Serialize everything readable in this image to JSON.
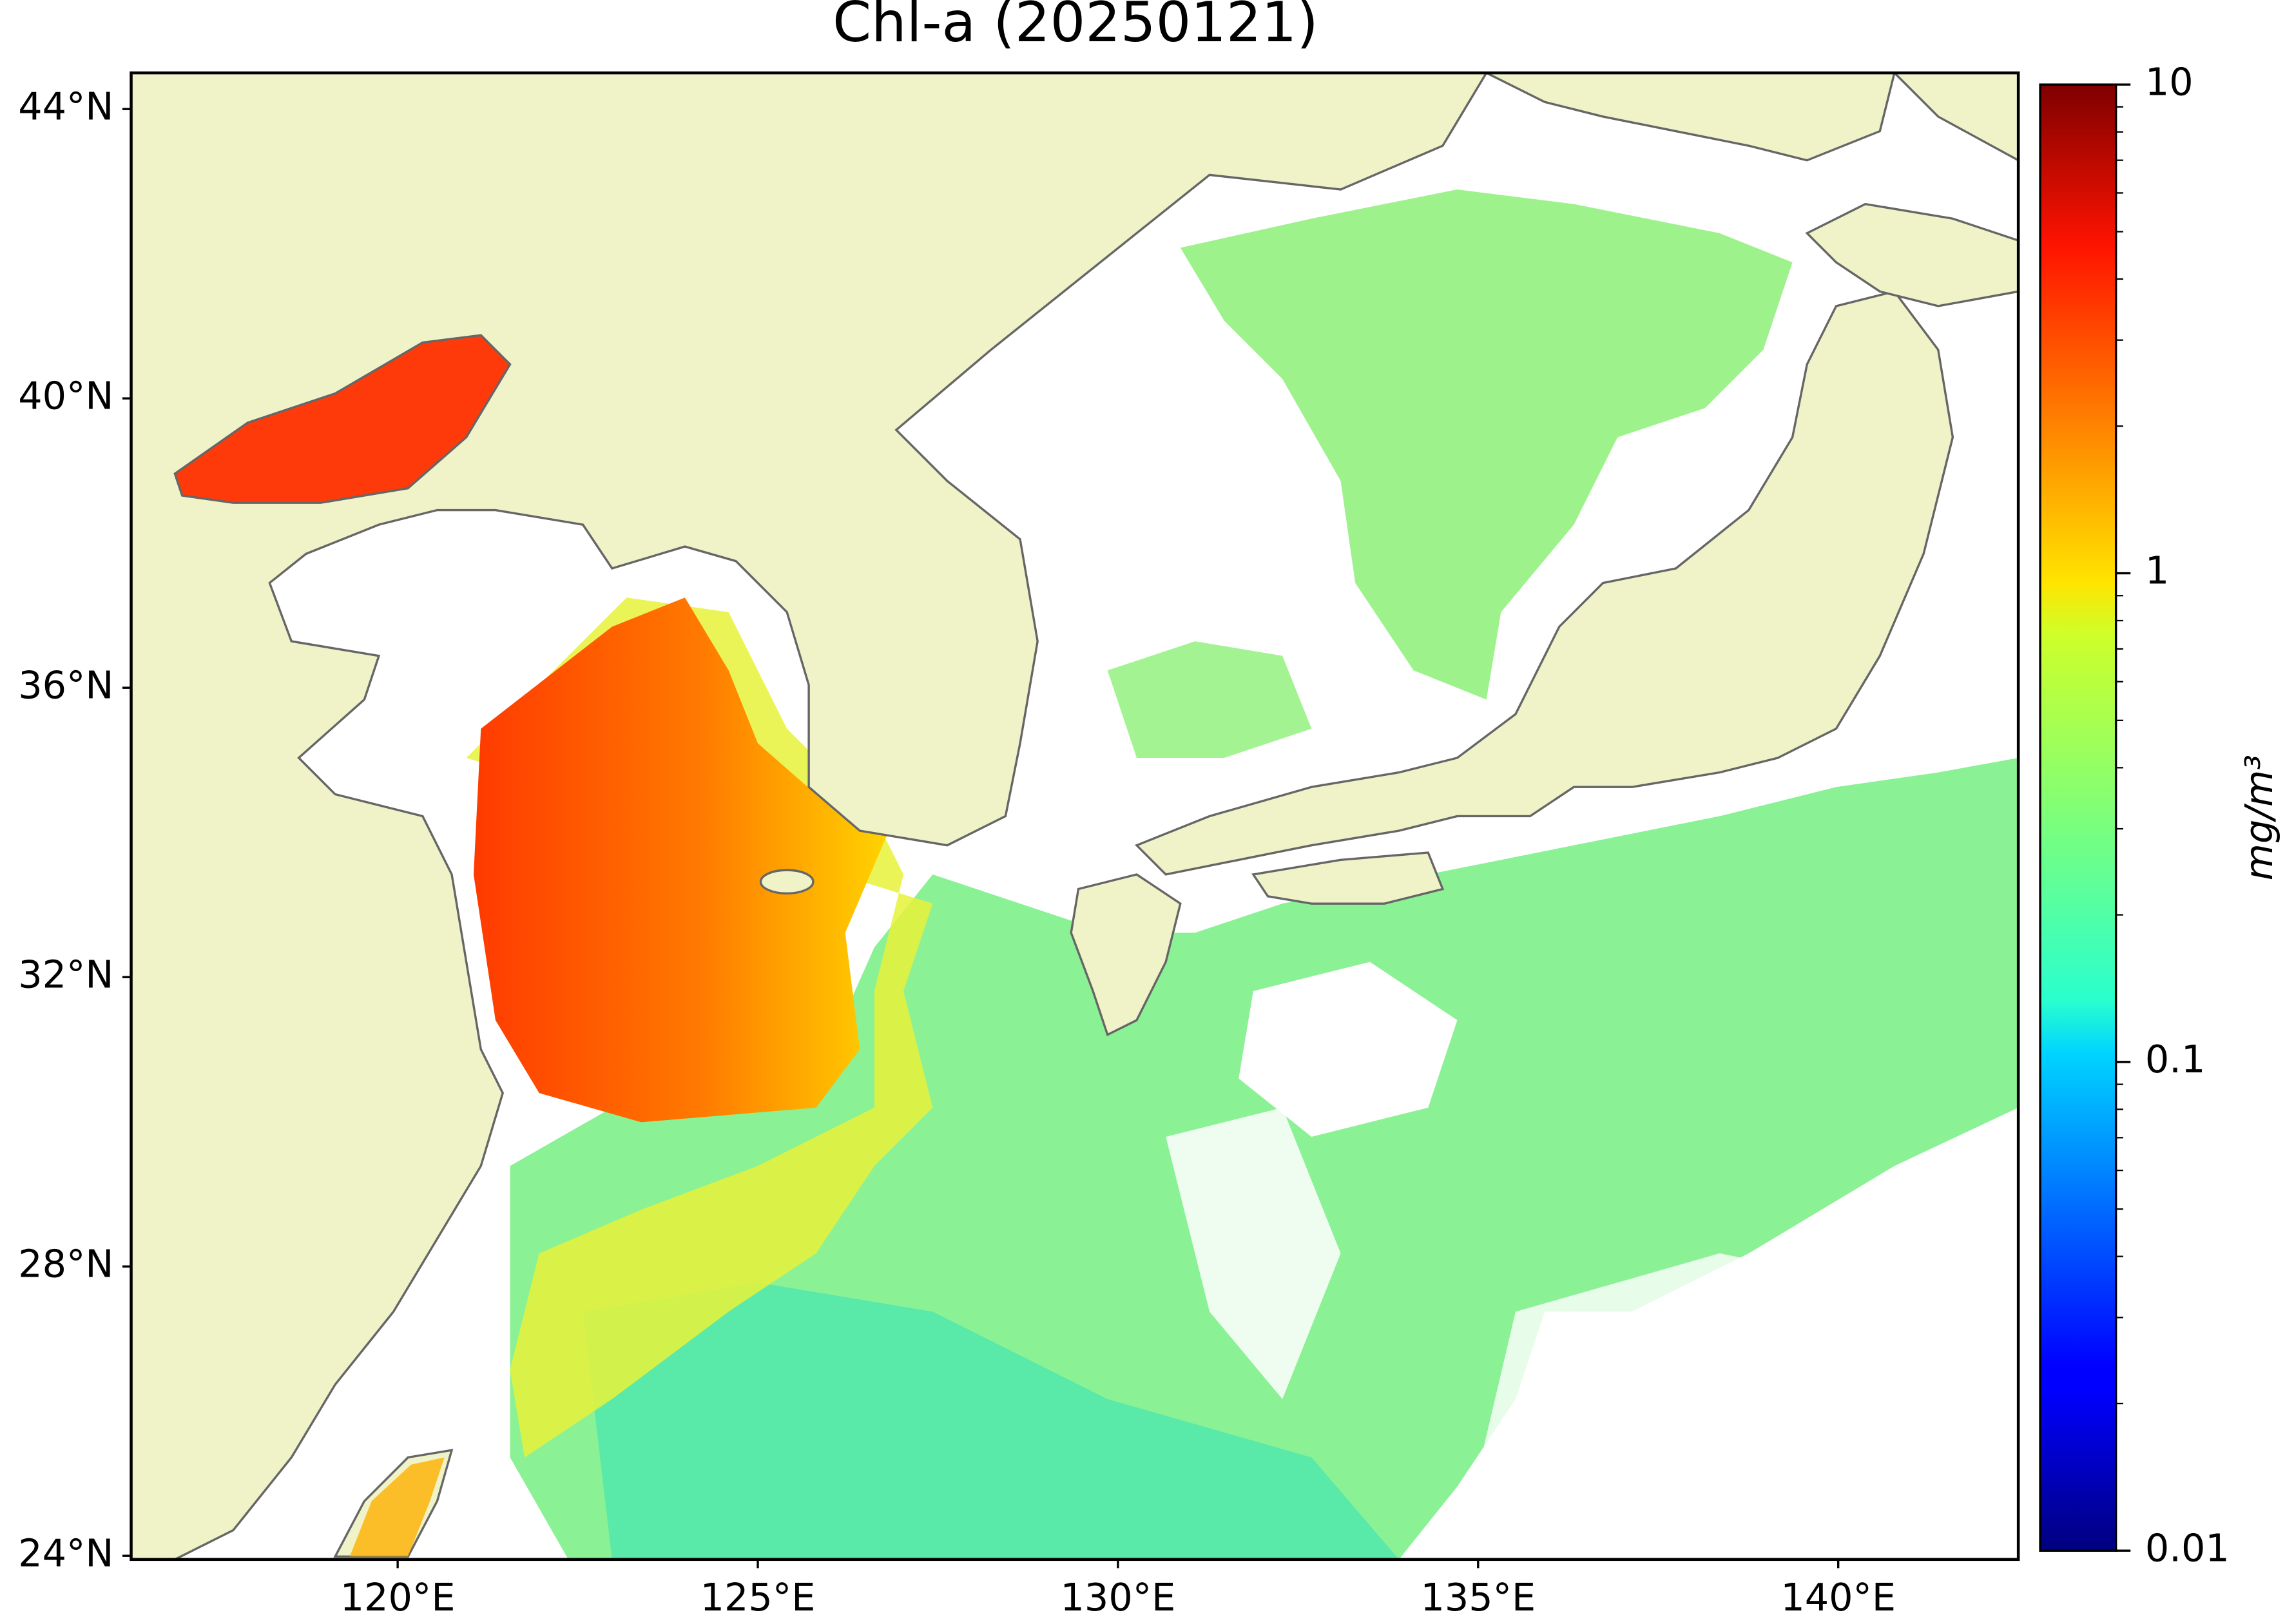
{
  "chart_data": {
    "type": "map",
    "title": "Chl-a (20250121)",
    "xlim": [
      116.3,
      142.5
    ],
    "ylim": [
      23.95,
      44.5
    ],
    "xticks": [
      {
        "value": 120,
        "label": "120°E"
      },
      {
        "value": 125,
        "label": "125°E"
      },
      {
        "value": 130,
        "label": "130°E"
      },
      {
        "value": 135,
        "label": "135°E"
      },
      {
        "value": 140,
        "label": "140°E"
      }
    ],
    "yticks": [
      {
        "value": 24,
        "label": "24°N"
      },
      {
        "value": 28,
        "label": "28°N"
      },
      {
        "value": 32,
        "label": "32°N"
      },
      {
        "value": 36,
        "label": "36°N"
      },
      {
        "value": 40,
        "label": "40°N"
      },
      {
        "value": 44,
        "label": "44°N"
      }
    ],
    "colorbar": {
      "label": "mg/m³",
      "scale": "log",
      "colormap": "jet",
      "lim": [
        0.01,
        10
      ],
      "ticks": [
        0.01,
        0.1,
        1,
        10
      ]
    }
  }
}
